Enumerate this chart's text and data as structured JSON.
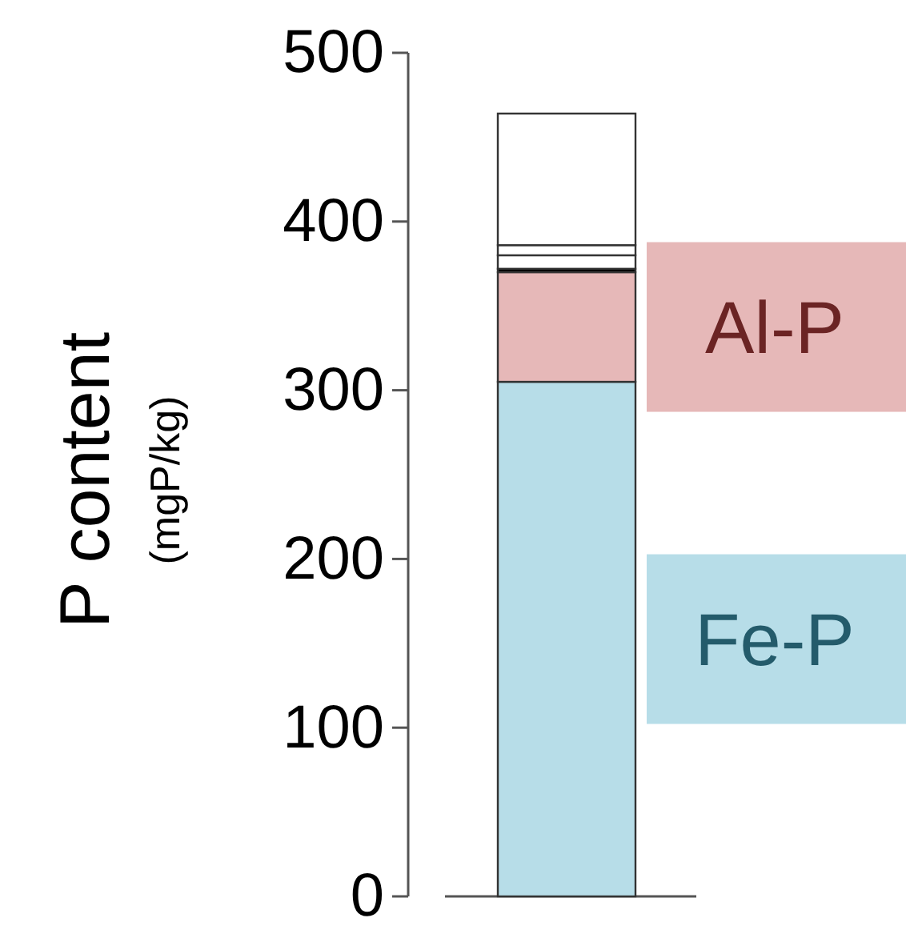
{
  "chart_data": {
    "type": "bar",
    "stacked": true,
    "ylabel": "P content\n(mgP/kg)",
    "categories": [
      null
    ],
    "series": [
      {
        "name": "Fe-P",
        "color": "#b7dde8",
        "values": [
          305
        ]
      },
      {
        "name": "Al-P",
        "color": "#e6b8b8",
        "values": [
          65
        ]
      },
      {
        "color": "#000000",
        "values": [
          2
        ]
      },
      {
        "color": "#ffffff",
        "values": [
          8
        ]
      },
      {
        "color": "#ffffff",
        "values": [
          6
        ]
      },
      {
        "color": "#ffffff",
        "values": [
          78
        ]
      }
    ],
    "ylim": [
      0,
      500
    ],
    "yticks": [
      0,
      100,
      200,
      300,
      400,
      500
    ],
    "grid": false
  }
}
